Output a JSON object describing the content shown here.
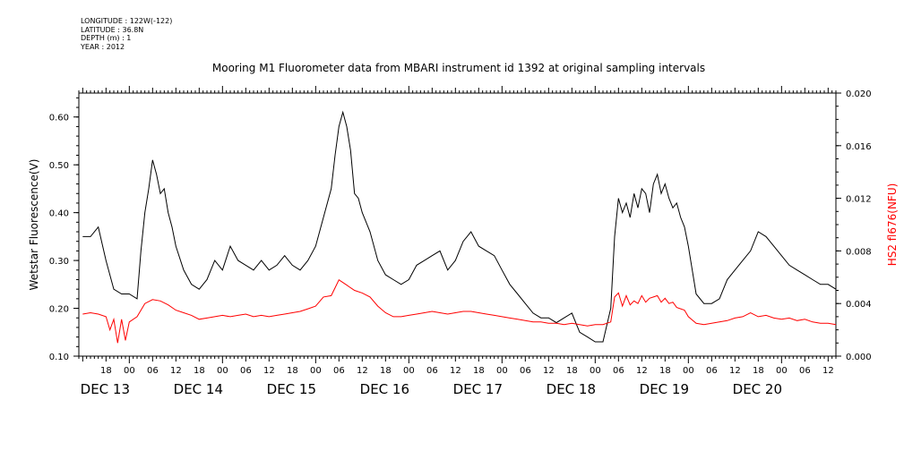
{
  "metadata": [
    "LONGITUDE : 122W(-122)",
    "LATITUDE : 36.8N",
    "DEPTH (m) : 1",
    "YEAR : 2012"
  ],
  "chart_data": {
    "type": "line",
    "title": "Mooring M1 Fluorometer data from MBARI instrument id 1392 at original sampling intervals",
    "xlabel": "",
    "ylabel_left": "Wetstar Fluorescence(V)",
    "ylabel_right": "HS2 fl676(NFU)",
    "x_unit": "hours since DEC 13 00:00 (2012)",
    "xlim": [
      -13,
      182
    ],
    "ylim_left": [
      0.1,
      0.65
    ],
    "ylim_right": [
      0.0,
      0.02
    ],
    "left_ticks": [
      "0.10",
      "0.20",
      "0.30",
      "0.40",
      "0.50",
      "0.60"
    ],
    "right_ticks": [
      "0.000",
      "0.004",
      "0.008",
      "0.012",
      "0.016",
      "0.020"
    ],
    "hour_tick_labels": [
      "18",
      "00",
      "06",
      "12",
      "18",
      "00",
      "06",
      "12",
      "18",
      "00",
      "06",
      "12",
      "18",
      "00",
      "06",
      "12",
      "18",
      "00",
      "06",
      "12",
      "18",
      "00",
      "06",
      "12",
      "18",
      "00",
      "06",
      "12",
      "18",
      "00",
      "06",
      "12"
    ],
    "day_labels": [
      "DEC 13",
      "DEC 14",
      "DEC 15",
      "DEC 16",
      "DEC 17",
      "DEC 18",
      "DEC 19",
      "DEC 20"
    ],
    "grid": false,
    "series": [
      {
        "name": "Wetstar Fluorescence(V)",
        "color": "#000000",
        "axis": "left",
        "points": [
          [
            -12,
            0.35
          ],
          [
            -10,
            0.35
          ],
          [
            -8,
            0.37
          ],
          [
            -6,
            0.3
          ],
          [
            -4,
            0.24
          ],
          [
            -2,
            0.23
          ],
          [
            0,
            0.23
          ],
          [
            2,
            0.22
          ],
          [
            3,
            0.32
          ],
          [
            4,
            0.4
          ],
          [
            5,
            0.45
          ],
          [
            6,
            0.51
          ],
          [
            7,
            0.48
          ],
          [
            8,
            0.44
          ],
          [
            9,
            0.45
          ],
          [
            10,
            0.4
          ],
          [
            11,
            0.37
          ],
          [
            12,
            0.33
          ],
          [
            14,
            0.28
          ],
          [
            16,
            0.25
          ],
          [
            18,
            0.24
          ],
          [
            20,
            0.26
          ],
          [
            22,
            0.3
          ],
          [
            24,
            0.28
          ],
          [
            26,
            0.33
          ],
          [
            28,
            0.3
          ],
          [
            30,
            0.29
          ],
          [
            32,
            0.28
          ],
          [
            34,
            0.3
          ],
          [
            36,
            0.28
          ],
          [
            38,
            0.29
          ],
          [
            40,
            0.31
          ],
          [
            42,
            0.29
          ],
          [
            44,
            0.28
          ],
          [
            46,
            0.3
          ],
          [
            48,
            0.33
          ],
          [
            50,
            0.39
          ],
          [
            52,
            0.45
          ],
          [
            53,
            0.52
          ],
          [
            54,
            0.58
          ],
          [
            55,
            0.61
          ],
          [
            56,
            0.58
          ],
          [
            57,
            0.53
          ],
          [
            58,
            0.44
          ],
          [
            59,
            0.43
          ],
          [
            60,
            0.4
          ],
          [
            62,
            0.36
          ],
          [
            64,
            0.3
          ],
          [
            66,
            0.27
          ],
          [
            68,
            0.26
          ],
          [
            70,
            0.25
          ],
          [
            72,
            0.26
          ],
          [
            74,
            0.29
          ],
          [
            76,
            0.3
          ],
          [
            78,
            0.31
          ],
          [
            80,
            0.32
          ],
          [
            82,
            0.28
          ],
          [
            84,
            0.3
          ],
          [
            86,
            0.34
          ],
          [
            88,
            0.36
          ],
          [
            90,
            0.33
          ],
          [
            92,
            0.32
          ],
          [
            94,
            0.31
          ],
          [
            96,
            0.28
          ],
          [
            98,
            0.25
          ],
          [
            100,
            0.23
          ],
          [
            102,
            0.21
          ],
          [
            104,
            0.19
          ],
          [
            106,
            0.18
          ],
          [
            108,
            0.18
          ],
          [
            110,
            0.17
          ],
          [
            112,
            0.18
          ],
          [
            114,
            0.19
          ],
          [
            116,
            0.15
          ],
          [
            118,
            0.14
          ],
          [
            120,
            0.13
          ],
          [
            122,
            0.13
          ],
          [
            124,
            0.2
          ],
          [
            125,
            0.35
          ],
          [
            126,
            0.43
          ],
          [
            127,
            0.4
          ],
          [
            128,
            0.42
          ],
          [
            129,
            0.39
          ],
          [
            130,
            0.44
          ],
          [
            131,
            0.41
          ],
          [
            132,
            0.45
          ],
          [
            133,
            0.44
          ],
          [
            134,
            0.4
          ],
          [
            135,
            0.46
          ],
          [
            136,
            0.48
          ],
          [
            137,
            0.44
          ],
          [
            138,
            0.46
          ],
          [
            139,
            0.43
          ],
          [
            140,
            0.41
          ],
          [
            141,
            0.42
          ],
          [
            142,
            0.39
          ],
          [
            143,
            0.37
          ],
          [
            144,
            0.33
          ],
          [
            146,
            0.23
          ],
          [
            148,
            0.21
          ],
          [
            150,
            0.21
          ],
          [
            152,
            0.22
          ],
          [
            154,
            0.26
          ],
          [
            156,
            0.28
          ],
          [
            158,
            0.3
          ],
          [
            160,
            0.32
          ],
          [
            162,
            0.36
          ],
          [
            164,
            0.35
          ],
          [
            166,
            0.33
          ],
          [
            168,
            0.31
          ],
          [
            170,
            0.29
          ],
          [
            172,
            0.28
          ],
          [
            174,
            0.27
          ],
          [
            176,
            0.26
          ],
          [
            178,
            0.25
          ],
          [
            180,
            0.25
          ],
          [
            182,
            0.24
          ]
        ]
      },
      {
        "name": "HS2 fl676(NFU)",
        "color": "#ff0000",
        "axis": "right",
        "points": [
          [
            -12,
            0.0032
          ],
          [
            -10,
            0.0033
          ],
          [
            -8,
            0.0032
          ],
          [
            -6,
            0.003
          ],
          [
            -5,
            0.002
          ],
          [
            -4,
            0.0028
          ],
          [
            -3,
            0.001
          ],
          [
            -2,
            0.0028
          ],
          [
            -1,
            0.0012
          ],
          [
            0,
            0.0026
          ],
          [
            2,
            0.003
          ],
          [
            4,
            0.004
          ],
          [
            6,
            0.0043
          ],
          [
            8,
            0.0042
          ],
          [
            10,
            0.0039
          ],
          [
            12,
            0.0035
          ],
          [
            14,
            0.0033
          ],
          [
            16,
            0.0031
          ],
          [
            18,
            0.0028
          ],
          [
            20,
            0.0029
          ],
          [
            22,
            0.003
          ],
          [
            24,
            0.0031
          ],
          [
            26,
            0.003
          ],
          [
            28,
            0.0031
          ],
          [
            30,
            0.0032
          ],
          [
            32,
            0.003
          ],
          [
            34,
            0.0031
          ],
          [
            36,
            0.003
          ],
          [
            38,
            0.0031
          ],
          [
            40,
            0.0032
          ],
          [
            42,
            0.0033
          ],
          [
            44,
            0.0034
          ],
          [
            46,
            0.0036
          ],
          [
            48,
            0.0038
          ],
          [
            50,
            0.0045
          ],
          [
            52,
            0.0046
          ],
          [
            53,
            0.0052
          ],
          [
            54,
            0.0058
          ],
          [
            55,
            0.0056
          ],
          [
            56,
            0.0054
          ],
          [
            57,
            0.0052
          ],
          [
            58,
            0.005
          ],
          [
            60,
            0.0048
          ],
          [
            62,
            0.0045
          ],
          [
            64,
            0.0038
          ],
          [
            66,
            0.0033
          ],
          [
            68,
            0.003
          ],
          [
            70,
            0.003
          ],
          [
            72,
            0.0031
          ],
          [
            74,
            0.0032
          ],
          [
            76,
            0.0033
          ],
          [
            78,
            0.0034
          ],
          [
            80,
            0.0033
          ],
          [
            82,
            0.0032
          ],
          [
            84,
            0.0033
          ],
          [
            86,
            0.0034
          ],
          [
            88,
            0.0034
          ],
          [
            90,
            0.0033
          ],
          [
            92,
            0.0032
          ],
          [
            94,
            0.0031
          ],
          [
            96,
            0.003
          ],
          [
            98,
            0.0029
          ],
          [
            100,
            0.0028
          ],
          [
            102,
            0.0027
          ],
          [
            104,
            0.0026
          ],
          [
            106,
            0.0026
          ],
          [
            108,
            0.0025
          ],
          [
            110,
            0.0025
          ],
          [
            112,
            0.0024
          ],
          [
            114,
            0.0025
          ],
          [
            116,
            0.0024
          ],
          [
            118,
            0.0023
          ],
          [
            120,
            0.0024
          ],
          [
            122,
            0.0024
          ],
          [
            124,
            0.0026
          ],
          [
            125,
            0.0045
          ],
          [
            126,
            0.0048
          ],
          [
            127,
            0.0038
          ],
          [
            128,
            0.0046
          ],
          [
            129,
            0.0039
          ],
          [
            130,
            0.0042
          ],
          [
            131,
            0.004
          ],
          [
            132,
            0.0046
          ],
          [
            133,
            0.0041
          ],
          [
            134,
            0.0044
          ],
          [
            135,
            0.0045
          ],
          [
            136,
            0.0046
          ],
          [
            137,
            0.0041
          ],
          [
            138,
            0.0044
          ],
          [
            139,
            0.004
          ],
          [
            140,
            0.0041
          ],
          [
            141,
            0.0037
          ],
          [
            142,
            0.0036
          ],
          [
            143,
            0.0035
          ],
          [
            144,
            0.003
          ],
          [
            146,
            0.0025
          ],
          [
            148,
            0.0024
          ],
          [
            150,
            0.0025
          ],
          [
            152,
            0.0026
          ],
          [
            154,
            0.0027
          ],
          [
            156,
            0.0029
          ],
          [
            158,
            0.003
          ],
          [
            160,
            0.0033
          ],
          [
            162,
            0.003
          ],
          [
            164,
            0.0031
          ],
          [
            166,
            0.0029
          ],
          [
            168,
            0.0028
          ],
          [
            170,
            0.0029
          ],
          [
            172,
            0.0027
          ],
          [
            174,
            0.0028
          ],
          [
            176,
            0.0026
          ],
          [
            178,
            0.0025
          ],
          [
            180,
            0.0025
          ],
          [
            182,
            0.0024
          ]
        ]
      }
    ]
  }
}
